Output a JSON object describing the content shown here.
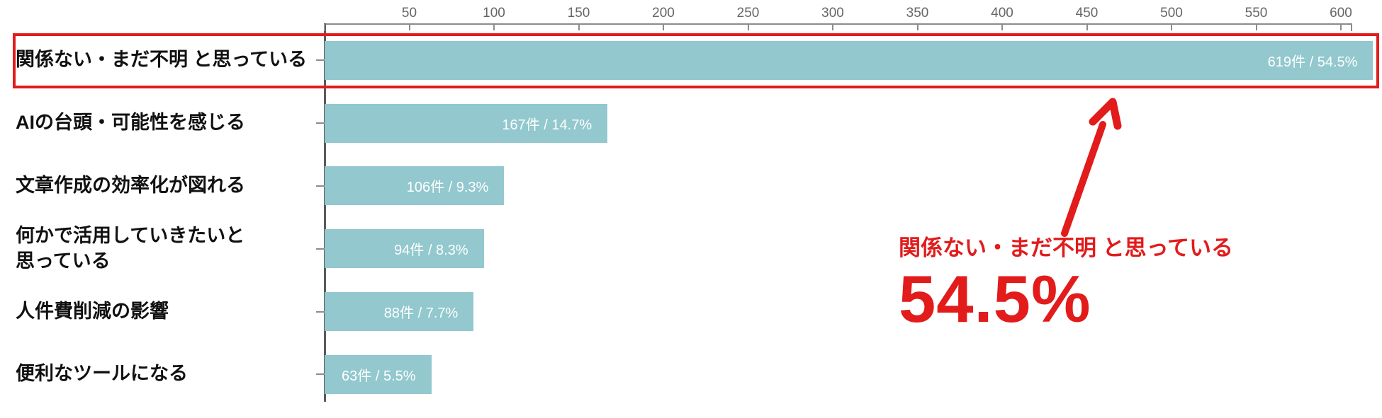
{
  "chart_data": {
    "type": "bar",
    "orientation": "horizontal",
    "title": "",
    "axis": {
      "position": "top",
      "min": 0,
      "max": 620,
      "tick_interval": 50,
      "ticks": [
        50,
        100,
        150,
        200,
        250,
        300,
        350,
        400,
        450,
        500,
        550,
        600
      ]
    },
    "grid": false,
    "legend_position": "none",
    "categories": [
      "関係ない・まだ不明 と思っている",
      "AIの台頭・可能性を感じる",
      "文章作成の効率化が図れる",
      "何かで活用していきたいと\n思っている",
      "人件費削減の影響",
      "便利なツールになる"
    ],
    "values": [
      619,
      167,
      106,
      94,
      88,
      63
    ],
    "bar_labels": [
      "619件 / 54.5%",
      "167件 / 14.7%",
      "106件 / 9.3%",
      "94件 / 8.3%",
      "88件 / 7.7%",
      "63件 / 5.5%"
    ],
    "highlighted_index": 0
  },
  "annotation": {
    "label": "関係ない・まだ不明 と思っている",
    "value": "54.5%"
  },
  "colors": {
    "bar": "#92c8ce",
    "bar_label_text": "#ffffff",
    "highlight_red": "#e21b1b",
    "axis_line": "#8c8c8c",
    "tick_text": "#666666",
    "category_text": "#111111"
  }
}
